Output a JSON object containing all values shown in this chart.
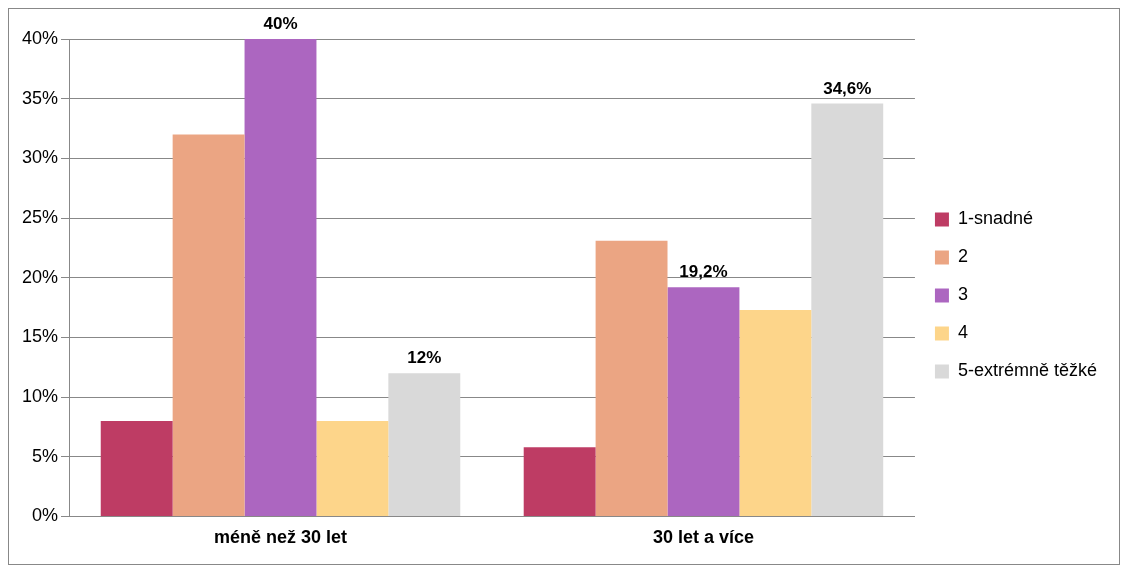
{
  "chart_data": {
    "type": "bar",
    "categories": [
      "méně než 30 let",
      "30 let a více"
    ],
    "series": [
      {
        "name": "1-snadné",
        "color": "#be3c64",
        "values": [
          8,
          5.8
        ],
        "value_labels": [
          null,
          null
        ]
      },
      {
        "name": "2",
        "color": "#eba583",
        "values": [
          32,
          23.1
        ],
        "value_labels": [
          null,
          null
        ]
      },
      {
        "name": "3",
        "color": "#ac66c0",
        "values": [
          40,
          19.2
        ],
        "value_labels": [
          "40%",
          "19,2%"
        ]
      },
      {
        "name": "4",
        "color": "#fdd58a",
        "values": [
          8,
          17.3
        ],
        "value_labels": [
          null,
          null
        ]
      },
      {
        "name": "5-extrémně těžké",
        "color": "#d9d9d9",
        "values": [
          12,
          34.6
        ],
        "value_labels": [
          "12%",
          "34,6%"
        ]
      }
    ],
    "ylim": [
      0,
      40
    ],
    "yticks": [
      {
        "value": 0,
        "label": "0%"
      },
      {
        "value": 5,
        "label": "5%"
      },
      {
        "value": 10,
        "label": "10%"
      },
      {
        "value": 15,
        "label": "15%"
      },
      {
        "value": 20,
        "label": "20%"
      },
      {
        "value": 25,
        "label": "25%"
      },
      {
        "value": 30,
        "label": "30%"
      },
      {
        "value": 35,
        "label": "35%"
      },
      {
        "value": 40,
        "label": "40%"
      }
    ],
    "grid": "y",
    "legend": "right"
  }
}
